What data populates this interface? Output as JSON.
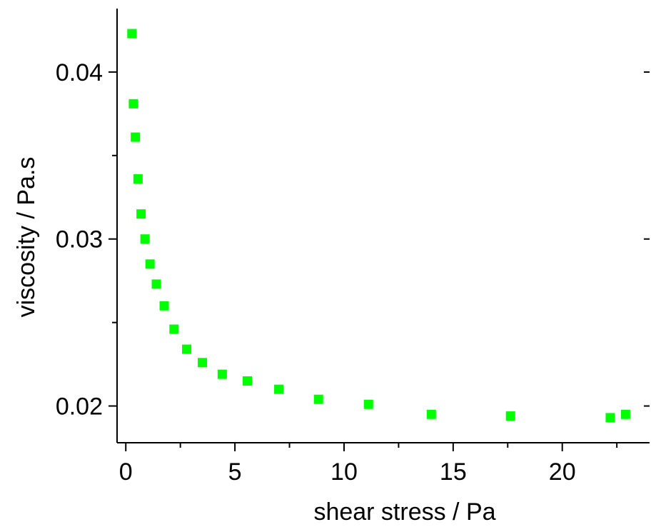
{
  "chart_data": {
    "type": "scatter",
    "title": "",
    "xlabel": "shear stress / Pa",
    "ylabel": "viscosity / Pa.s",
    "xlim": [
      -0.4,
      24.0
    ],
    "ylim": [
      0.0178,
      0.0438
    ],
    "xticks": [
      0,
      5,
      10,
      15,
      20
    ],
    "xtick_labels": [
      "0",
      "5",
      "10",
      "15",
      "20"
    ],
    "yticks": [
      0.02,
      0.03,
      0.04
    ],
    "ytick_labels": [
      "0.02",
      "0.03",
      "0.04"
    ],
    "grid": false,
    "legend": "none",
    "marker": "square",
    "color": "#00ff00",
    "series": [
      {
        "x": [
          0.28,
          0.35,
          0.44,
          0.56,
          0.7,
          0.88,
          1.11,
          1.4,
          1.76,
          2.21,
          2.79,
          3.51,
          4.42,
          5.57,
          7.01,
          8.83,
          11.12,
          14.0,
          17.63,
          22.2
        ],
        "y": [
          0.0423,
          0.0381,
          0.0361,
          0.0336,
          0.0315,
          0.03,
          0.0285,
          0.0273,
          0.026,
          0.0246,
          0.0234,
          0.0226,
          0.0219,
          0.0215,
          0.021,
          0.0204,
          0.0201,
          0.0195,
          0.0194,
          0.0193
        ]
      }
    ],
    "extra_points": {
      "x": [
        22.9
      ],
      "y": [
        0.0195
      ]
    }
  }
}
